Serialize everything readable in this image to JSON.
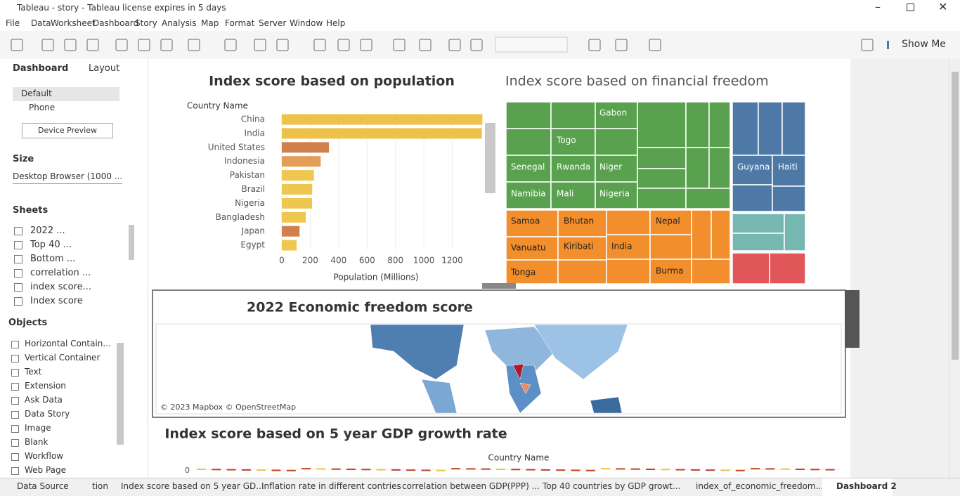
{
  "window": {
    "title": "Tableau - story - Tableau license expires in 5 days"
  },
  "menu": [
    "File",
    "Data",
    "Worksheet",
    "Dashboard",
    "Story",
    "Analysis",
    "Map",
    "Format",
    "Server",
    "Window",
    "Help"
  ],
  "toolbar": {
    "show_me": "Show Me"
  },
  "side_panel": {
    "tabs": [
      "Dashboard",
      "Layout"
    ],
    "devices": [
      "Default",
      "Phone"
    ],
    "device_preview": "Device Preview",
    "size_heading": "Size",
    "size_value": "Desktop Browser (1000 ...",
    "sheets_heading": "Sheets",
    "sheets": [
      "2022 ...",
      "Top 40 ...",
      "Bottom ...",
      "correlation ...",
      "index score...",
      "Index score"
    ],
    "objects_heading": "Objects",
    "objects": [
      "Horizontal Contain...",
      "Vertical Container",
      "Text",
      "Extension",
      "Ask Data",
      "Data Story",
      "Image",
      "Blank",
      "Workflow",
      "Web Page"
    ]
  },
  "dashboard": {
    "population_chart": {
      "type": "bar",
      "title": "Index score based on population",
      "y_label": "Country Name",
      "x_label": "Population (Millions)",
      "categories": [
        "China",
        "India",
        "United States",
        "Indonesia",
        "Pakistan",
        "Brazil",
        "Nigeria",
        "Bangladesh",
        "Japan",
        "Egypt"
      ],
      "values": [
        1412,
        1408,
        332,
        274,
        226,
        214,
        213,
        169,
        125,
        104
      ],
      "colors": [
        "#edc24a",
        "#edc24a",
        "#d27f4e",
        "#e29d57",
        "#efc650",
        "#efc650",
        "#efc650",
        "#efc650",
        "#d27f4e",
        "#efc650"
      ],
      "xlim": [
        0,
        1420
      ],
      "xticks": [
        0,
        200,
        400,
        600,
        800,
        1000,
        1200
      ]
    },
    "treemap": {
      "title": "Index score based on financial freedom",
      "labels": [
        "Gabon",
        "Togo",
        "Senegal",
        "Rwanda",
        "Niger",
        "Namibia",
        "Mali",
        "Nigeria",
        "Guyana",
        "Haiti",
        "Samoa",
        "Bhutan",
        "Nepal",
        "Vanuatu",
        "Kiribati",
        "India",
        "Tonga",
        "Burma"
      ]
    },
    "map": {
      "title": "2022 Economic freedom score",
      "attribution": "© 2023 Mapbox © OpenStreetMap"
    },
    "gdp_chart": {
      "title": "Index score based on 5 year GDP growth rate",
      "x_label": "Country Name",
      "yticks": [
        0
      ]
    }
  },
  "tabs": [
    "Data Source",
    "tion",
    "Index score based on 5 year GD...",
    "Inflation rate in different contries",
    "correlation between GDP(PPP) ...",
    "Top 40 countries by GDP growt...",
    "index_of_economic_freedom...",
    "Dashboard 2"
  ]
}
